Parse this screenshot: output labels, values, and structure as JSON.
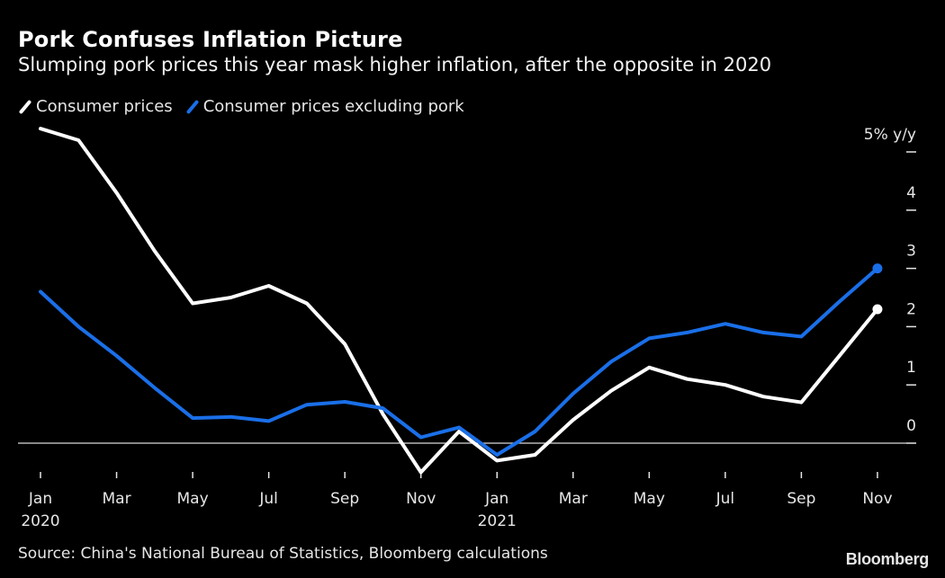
{
  "header": {
    "title": "Pork Confuses Inflation Picture",
    "subtitle": "Slumping pork prices this year mask higher inflation, after the opposite in 2020"
  },
  "legend": [
    {
      "label": "Consumer prices",
      "color": "#ffffff"
    },
    {
      "label": "Consumer prices excluding pork",
      "color": "#1a6fe8"
    }
  ],
  "footer": {
    "source": "Source: China's National Bureau of Statistics, Bloomberg calculations",
    "brand": "Bloomberg"
  },
  "chart_data": {
    "type": "line",
    "title": "Pork Confuses Inflation Picture",
    "subtitle": "Slumping pork prices this year mask higher inflation, after the opposite in 2020",
    "xlabel": "",
    "ylabel": "% y/y",
    "x": [
      "2020-01",
      "2020-02",
      "2020-03",
      "2020-04",
      "2020-05",
      "2020-06",
      "2020-07",
      "2020-08",
      "2020-09",
      "2020-10",
      "2020-11",
      "2020-12",
      "2021-01",
      "2021-02",
      "2021-03",
      "2021-04",
      "2021-05",
      "2021-06",
      "2021-07",
      "2021-08",
      "2021-09",
      "2021-10",
      "2021-11"
    ],
    "x_ticks": [
      {
        "index": 0,
        "label": "Jan",
        "sublabel": "2020"
      },
      {
        "index": 2,
        "label": "Mar"
      },
      {
        "index": 4,
        "label": "May"
      },
      {
        "index": 6,
        "label": "Jul"
      },
      {
        "index": 8,
        "label": "Sep"
      },
      {
        "index": 10,
        "label": "Nov"
      },
      {
        "index": 12,
        "label": "Jan",
        "sublabel": "2021"
      },
      {
        "index": 14,
        "label": "Mar"
      },
      {
        "index": 16,
        "label": "May"
      },
      {
        "index": 18,
        "label": "Jul"
      },
      {
        "index": 20,
        "label": "Sep"
      },
      {
        "index": 22,
        "label": "Nov"
      }
    ],
    "y_ticks": [
      {
        "value": 5,
        "label": "5% y/y"
      },
      {
        "value": 4,
        "label": "4"
      },
      {
        "value": 3,
        "label": "3"
      },
      {
        "value": 2,
        "label": "2"
      },
      {
        "value": 1,
        "label": "1"
      },
      {
        "value": 0,
        "label": "0"
      }
    ],
    "ylim": [
      -0.6,
      5.5
    ],
    "grid": false,
    "zero_line": true,
    "legend_position": "top-left",
    "series": [
      {
        "name": "Consumer prices",
        "color": "#ffffff",
        "end_marker": true,
        "values": [
          5.4,
          5.2,
          4.3,
          3.3,
          2.4,
          2.5,
          2.7,
          2.4,
          1.7,
          0.5,
          -0.5,
          0.2,
          -0.3,
          -0.2,
          0.4,
          0.9,
          1.3,
          1.1,
          1.0,
          0.8,
          0.7,
          1.5,
          2.3
        ]
      },
      {
        "name": "Consumer prices excluding pork",
        "color": "#1a6fe8",
        "end_marker": true,
        "values": [
          2.6,
          2.0,
          1.5,
          0.95,
          0.43,
          0.45,
          0.38,
          0.66,
          0.71,
          0.6,
          0.1,
          0.27,
          -0.2,
          0.2,
          0.85,
          1.4,
          1.8,
          1.9,
          2.05,
          1.9,
          1.83,
          2.43,
          3.0
        ]
      }
    ]
  }
}
